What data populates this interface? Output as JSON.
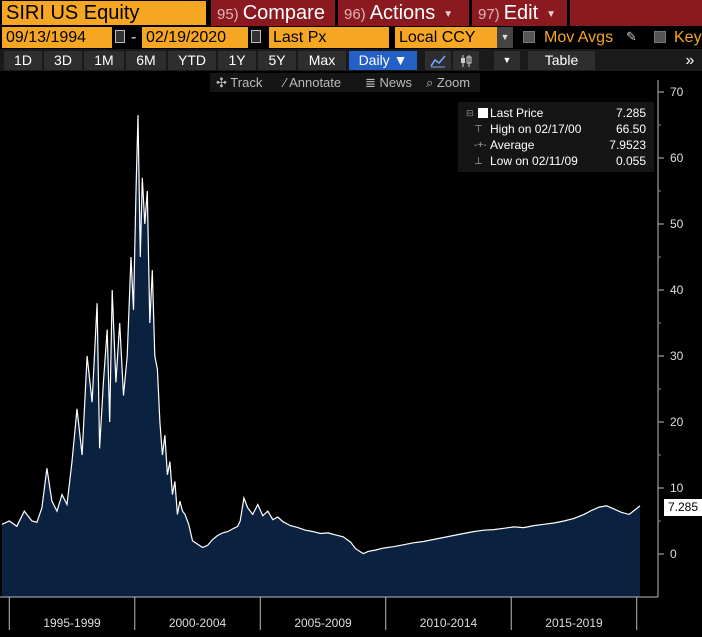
{
  "header": {
    "ticker": "SIRI US Equity",
    "compare": {
      "num": "95)",
      "label": "Compare"
    },
    "actions": {
      "num": "96)",
      "label": "Actions"
    },
    "edit": {
      "num": "97)",
      "label": "Edit"
    }
  },
  "controls": {
    "start_date": "09/13/1994",
    "end_date": "02/19/2020",
    "separator": "-",
    "field": "Last Px",
    "currency": "Local CCY",
    "mov_avgs_label": "Mov Avgs",
    "key_label": "Key"
  },
  "ranges": [
    "1D",
    "3D",
    "1M",
    "6M",
    "YTD",
    "1Y",
    "5Y",
    "Max"
  ],
  "frequency": "Daily ▼",
  "table_label": "Table",
  "tools": {
    "track": "Track",
    "annotate": "Annotate",
    "news": "News",
    "zoom": "Zoom"
  },
  "legend": {
    "last_label": "Last Price",
    "last_value": "7.285",
    "high_label": "High on 02/17/00",
    "high_value": "66.50",
    "avg_label": "Average",
    "avg_value": "7.9523",
    "low_label": "Low on 02/11/09",
    "low_value": "0.055"
  },
  "last_badge": "7.285",
  "colors": {
    "accent": "#f5a623",
    "red_button": "#8a1a1f",
    "area_fill": "#0b2140",
    "active_blue": "#2460c6"
  },
  "chart_data": {
    "type": "area",
    "title": "",
    "xlabel": "",
    "ylabel": "",
    "ylim": [
      -5,
      72
    ],
    "yticks": [
      0,
      10,
      20,
      30,
      40,
      50,
      60,
      70
    ],
    "x_period_labels": [
      "1995-1999",
      "2000-2004",
      "2005-2009",
      "2010-2014",
      "2015-2019"
    ],
    "grid": false,
    "legend_position": "top-right",
    "series": [
      {
        "name": "Last Price",
        "x": [
          1994.71,
          1995.0,
          1995.3,
          1995.6,
          1995.9,
          1996.1,
          1996.3,
          1996.5,
          1996.7,
          1996.9,
          1997.1,
          1997.3,
          1997.5,
          1997.7,
          1997.9,
          1998.1,
          1998.3,
          1998.5,
          1998.6,
          1998.75,
          1998.9,
          1999.0,
          1999.1,
          1999.25,
          1999.4,
          1999.55,
          1999.7,
          1999.85,
          1999.95,
          2000.05,
          2000.13,
          2000.22,
          2000.3,
          2000.4,
          2000.5,
          2000.6,
          2000.7,
          2000.8,
          2000.9,
          2001.0,
          2001.1,
          2001.2,
          2001.3,
          2001.4,
          2001.5,
          2001.6,
          2001.7,
          2001.8,
          2001.9,
          2002.0,
          2002.15,
          2002.3,
          2002.5,
          2002.7,
          2002.9,
          2003.1,
          2003.3,
          2003.5,
          2003.7,
          2003.9,
          2004.1,
          2004.2,
          2004.35,
          2004.5,
          2004.7,
          2004.9,
          2005.1,
          2005.3,
          2005.5,
          2005.7,
          2005.9,
          2006.2,
          2006.5,
          2006.8,
          2007.1,
          2007.4,
          2007.7,
          2008.0,
          2008.3,
          2008.6,
          2008.8,
          2009.0,
          2009.11,
          2009.3,
          2009.6,
          2009.9,
          2010.3,
          2010.7,
          2011.1,
          2011.5,
          2011.9,
          2012.3,
          2012.7,
          2013.1,
          2013.5,
          2013.9,
          2014.3,
          2014.7,
          2015.1,
          2015.5,
          2015.9,
          2016.3,
          2016.7,
          2017.1,
          2017.5,
          2017.9,
          2018.2,
          2018.5,
          2018.8,
          2019.1,
          2019.4,
          2019.7,
          2020.0,
          2020.13
        ],
        "values": [
          4.5,
          5.0,
          4.2,
          6.5,
          5.0,
          4.8,
          7.0,
          13.0,
          8.0,
          6.5,
          9.0,
          7.5,
          14.0,
          22.0,
          15.0,
          30.0,
          23.0,
          38.0,
          16.0,
          26.0,
          34.0,
          20.0,
          40.0,
          26.0,
          35.0,
          24.0,
          30.0,
          45.0,
          37.0,
          55.0,
          66.5,
          45.0,
          57.0,
          50.0,
          55.0,
          35.0,
          43.0,
          30.0,
          28.0,
          20.0,
          15.0,
          18.0,
          12.0,
          14.0,
          9.0,
          11.0,
          6.0,
          8.0,
          6.5,
          6.0,
          4.5,
          2.0,
          1.5,
          1.0,
          1.3,
          2.2,
          2.8,
          3.2,
          3.4,
          3.8,
          4.2,
          5.0,
          8.5,
          7.0,
          6.0,
          7.5,
          5.8,
          6.5,
          5.2,
          5.6,
          4.9,
          4.3,
          4.0,
          3.6,
          3.4,
          3.1,
          3.2,
          2.9,
          2.6,
          1.8,
          0.8,
          0.3,
          0.055,
          0.4,
          0.6,
          0.9,
          1.1,
          1.4,
          1.7,
          1.9,
          2.2,
          2.5,
          2.8,
          3.1,
          3.4,
          3.6,
          3.7,
          3.9,
          4.1,
          4.0,
          4.3,
          4.5,
          4.7,
          5.0,
          5.4,
          6.0,
          6.6,
          7.1,
          7.3,
          6.8,
          6.3,
          6.0,
          6.9,
          7.285
        ]
      }
    ]
  }
}
